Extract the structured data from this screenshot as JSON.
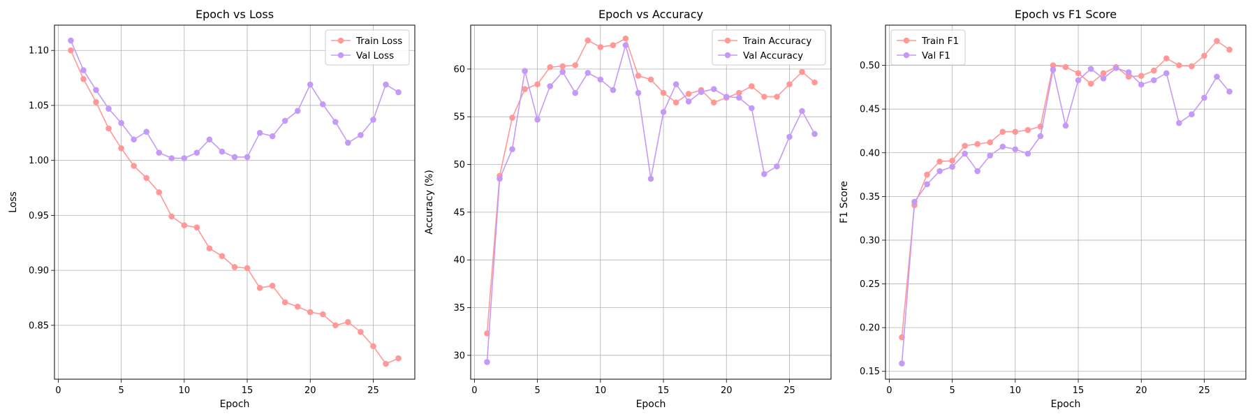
{
  "chart_data": [
    {
      "type": "line",
      "title": "Epoch vs Loss",
      "xlabel": "Epoch",
      "ylabel": "Loss",
      "xlim": [
        -0.3,
        28.3
      ],
      "ylim": [
        0.801,
        1.123
      ],
      "xticks": [
        0,
        5,
        10,
        15,
        20,
        25
      ],
      "yticks": [
        0.85,
        0.9,
        0.95,
        1.0,
        1.05,
        1.1
      ],
      "ytick_decimals": 2,
      "grid": true,
      "legend_position": "top-right",
      "x": [
        1,
        2,
        3,
        4,
        5,
        6,
        7,
        8,
        9,
        10,
        11,
        12,
        13,
        14,
        15,
        16,
        17,
        18,
        19,
        20,
        21,
        22,
        23,
        24,
        25,
        26,
        27
      ],
      "series": [
        {
          "name": "Train Loss",
          "color": "#ff9896",
          "values": [
            1.1,
            1.074,
            1.053,
            1.029,
            1.011,
            0.995,
            0.984,
            0.971,
            0.949,
            0.941,
            0.939,
            0.92,
            0.913,
            0.903,
            0.902,
            0.884,
            0.886,
            0.871,
            0.867,
            0.862,
            0.86,
            0.85,
            0.853,
            0.844,
            0.831,
            0.815,
            0.82
          ]
        },
        {
          "name": "Val Loss",
          "color": "#c59af7",
          "values": [
            1.109,
            1.082,
            1.064,
            1.047,
            1.034,
            1.019,
            1.026,
            1.007,
            1.002,
            1.002,
            1.007,
            1.019,
            1.008,
            1.003,
            1.003,
            1.025,
            1.022,
            1.036,
            1.045,
            1.069,
            1.051,
            1.035,
            1.016,
            1.023,
            1.037,
            1.069,
            1.062
          ]
        }
      ]
    },
    {
      "type": "line",
      "title": "Epoch vs Accuracy",
      "xlabel": "Epoch",
      "ylabel": "Accuracy (%)",
      "xlim": [
        -0.3,
        28.3
      ],
      "ylim": [
        27.5,
        64.6
      ],
      "xticks": [
        0,
        5,
        10,
        15,
        20,
        25
      ],
      "yticks": [
        30,
        35,
        40,
        45,
        50,
        55,
        60
      ],
      "ytick_decimals": 0,
      "grid": true,
      "legend_position": "top-right",
      "x": [
        1,
        2,
        3,
        4,
        5,
        6,
        7,
        8,
        9,
        10,
        11,
        12,
        13,
        14,
        15,
        16,
        17,
        18,
        19,
        20,
        21,
        22,
        23,
        24,
        25,
        26,
        27
      ],
      "series": [
        {
          "name": "Train Accuracy",
          "color": "#ff9896",
          "values": [
            32.3,
            48.8,
            54.9,
            57.9,
            58.4,
            60.2,
            60.3,
            60.4,
            63.0,
            62.3,
            62.5,
            63.2,
            59.3,
            58.9,
            57.5,
            56.5,
            57.4,
            57.8,
            56.5,
            57.0,
            57.5,
            58.2,
            57.1,
            57.1,
            58.4,
            59.7,
            58.6
          ]
        },
        {
          "name": "Val Accuracy",
          "color": "#c59af7",
          "values": [
            29.3,
            48.5,
            51.6,
            59.8,
            54.7,
            58.2,
            59.7,
            57.5,
            59.6,
            58.9,
            57.8,
            62.5,
            57.5,
            48.5,
            55.5,
            58.4,
            56.6,
            57.6,
            57.9,
            57.1,
            57.0,
            55.9,
            49.0,
            49.8,
            52.9,
            55.6,
            53.2
          ]
        }
      ]
    },
    {
      "type": "line",
      "title": "Epoch vs F1 Score",
      "xlabel": "Epoch",
      "ylabel": "F1 Score",
      "xlim": [
        -0.3,
        28.3
      ],
      "ylim": [
        0.141,
        0.546
      ],
      "xticks": [
        0,
        5,
        10,
        15,
        20,
        25
      ],
      "yticks": [
        0.15,
        0.2,
        0.25,
        0.3,
        0.35,
        0.4,
        0.45,
        0.5
      ],
      "ytick_decimals": 2,
      "grid": true,
      "legend_position": "top-left",
      "x": [
        1,
        2,
        3,
        4,
        5,
        6,
        7,
        8,
        9,
        10,
        11,
        12,
        13,
        14,
        15,
        16,
        17,
        18,
        19,
        20,
        21,
        22,
        23,
        24,
        25,
        26,
        27
      ],
      "series": [
        {
          "name": "Train F1",
          "color": "#ff9896",
          "values": [
            0.189,
            0.34,
            0.375,
            0.39,
            0.391,
            0.408,
            0.41,
            0.412,
            0.424,
            0.424,
            0.426,
            0.43,
            0.5,
            0.498,
            0.491,
            0.479,
            0.491,
            0.498,
            0.487,
            0.488,
            0.494,
            0.508,
            0.5,
            0.499,
            0.511,
            0.528,
            0.518
          ]
        },
        {
          "name": "Val F1",
          "color": "#c59af7",
          "values": [
            0.159,
            0.344,
            0.364,
            0.379,
            0.384,
            0.399,
            0.379,
            0.397,
            0.407,
            0.404,
            0.399,
            0.419,
            0.495,
            0.431,
            0.483,
            0.496,
            0.485,
            0.497,
            0.492,
            0.478,
            0.483,
            0.491,
            0.434,
            0.444,
            0.463,
            0.487,
            0.47
          ]
        }
      ]
    }
  ]
}
